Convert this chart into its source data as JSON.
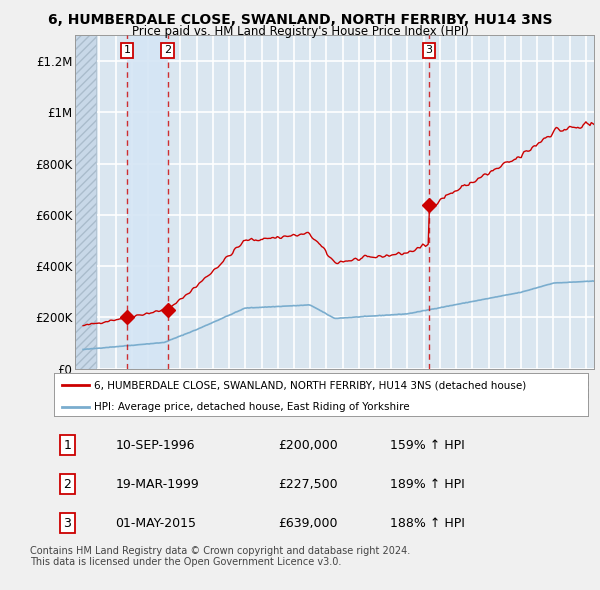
{
  "title_line1": "6, HUMBERDALE CLOSE, SWANLAND, NORTH FERRIBY, HU14 3NS",
  "title_line2": "Price paid vs. HM Land Registry's House Price Index (HPI)",
  "xlim": [
    1993.5,
    2025.5
  ],
  "ylim": [
    0,
    1300000
  ],
  "yticks": [
    0,
    200000,
    400000,
    600000,
    800000,
    1000000,
    1200000
  ],
  "ytick_labels": [
    "£0",
    "£200K",
    "£400K",
    "£600K",
    "£800K",
    "£1M",
    "£1.2M"
  ],
  "xticks": [
    1994,
    1995,
    1996,
    1997,
    1998,
    1999,
    2000,
    2001,
    2002,
    2003,
    2004,
    2005,
    2006,
    2007,
    2008,
    2009,
    2010,
    2011,
    2012,
    2013,
    2014,
    2015,
    2016,
    2017,
    2018,
    2019,
    2020,
    2021,
    2022,
    2023,
    2024,
    2025
  ],
  "hatch_region_end": 1994.8,
  "shade_region": [
    1996.7,
    1999.22
  ],
  "sale_points": [
    {
      "year": 1996.7,
      "price": 200000,
      "label": "1"
    },
    {
      "year": 1999.22,
      "price": 227500,
      "label": "2"
    },
    {
      "year": 2015.33,
      "price": 639000,
      "label": "3"
    }
  ],
  "legend_entries": [
    {
      "label": "6, HUMBERDALE CLOSE, SWANLAND, NORTH FERRIBY, HU14 3NS (detached house)",
      "color": "#cc0000"
    },
    {
      "label": "HPI: Average price, detached house, East Riding of Yorkshire",
      "color": "#7aadce"
    }
  ],
  "table_data": [
    {
      "num": "1",
      "date": "10-SEP-1996",
      "price": "£200,000",
      "hpi": "159% ↑ HPI"
    },
    {
      "num": "2",
      "date": "19-MAR-1999",
      "price": "£227,500",
      "hpi": "189% ↑ HPI"
    },
    {
      "num": "3",
      "date": "01-MAY-2015",
      "price": "£639,000",
      "hpi": "188% ↑ HPI"
    }
  ],
  "footnote": "Contains HM Land Registry data © Crown copyright and database right 2024.\nThis data is licensed under the Open Government Licence v3.0.",
  "plot_bg_color": "#dae6f0",
  "grid_color": "#ffffff",
  "red_line_color": "#cc0000",
  "blue_line_color": "#7aadce",
  "shade_color": "#d5e5f5"
}
